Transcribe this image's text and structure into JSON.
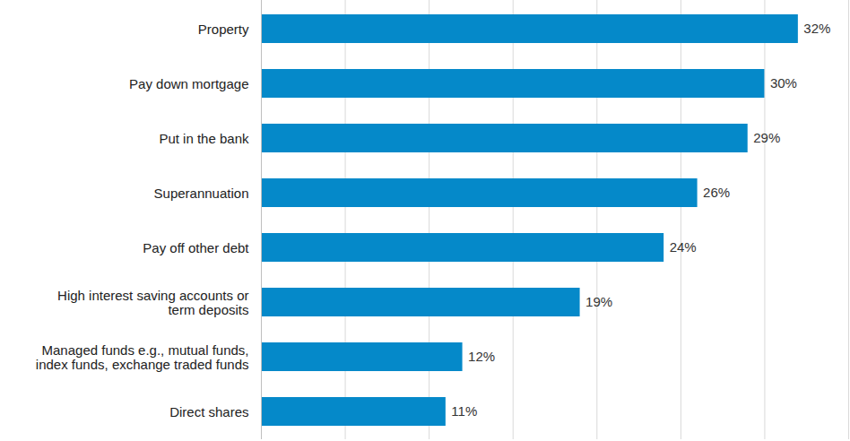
{
  "chart_data": {
    "type": "bar",
    "orientation": "horizontal",
    "categories": [
      "Property",
      "Pay down mortgage",
      "Put in the bank",
      "Superannuation",
      "Pay off other debt",
      "High interest saving accounts or term deposits",
      "Managed funds e.g., mutual funds, index funds, exchange traded funds",
      "Direct shares"
    ],
    "values": [
      32,
      30,
      29,
      26,
      24,
      19,
      12,
      11
    ],
    "value_labels": [
      "32%",
      "30%",
      "29%",
      "26%",
      "24%",
      "19%",
      "12%",
      "11%"
    ],
    "color": "#0589c9",
    "xlim": [
      0,
      35
    ],
    "xticks": [
      0,
      5,
      10,
      15,
      20,
      25,
      30,
      35
    ],
    "grid": true,
    "data_labels": true,
    "tick_labels": "y"
  }
}
